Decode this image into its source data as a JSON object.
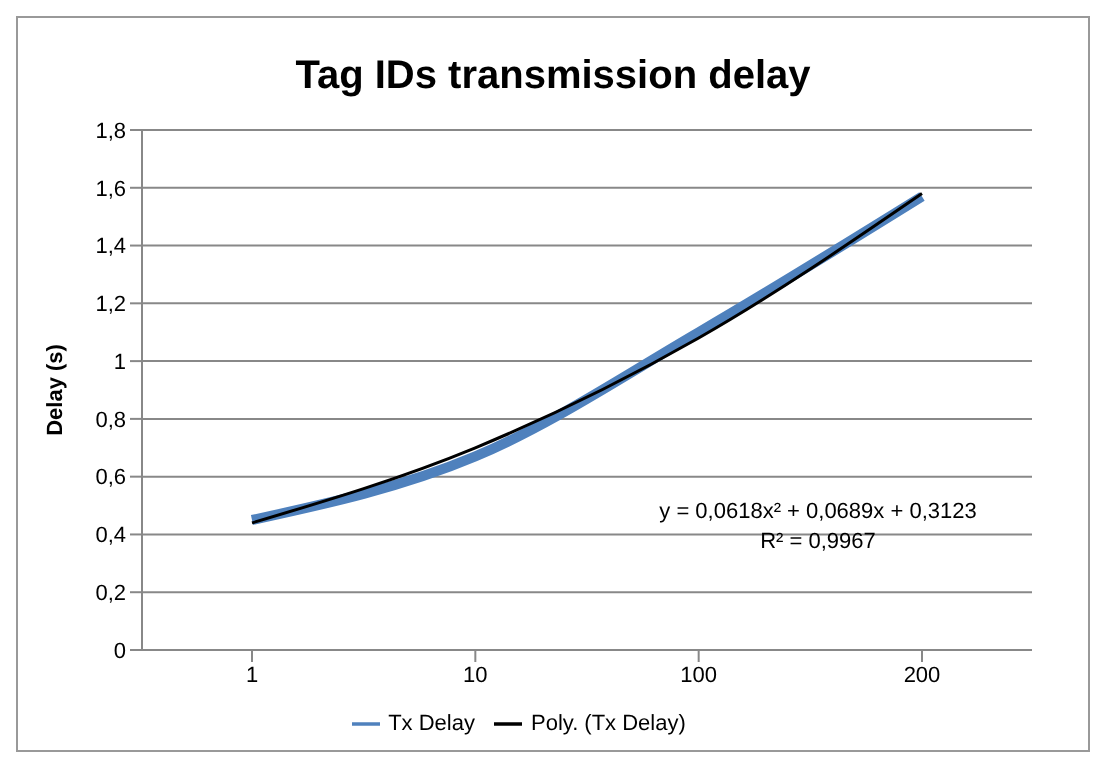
{
  "chart_data": {
    "type": "line",
    "title": "Tag IDs transmission delay",
    "ylabel": "Delay (s)",
    "categories": [
      "1",
      "10",
      "100",
      "200"
    ],
    "series": [
      {
        "name": "Tx Delay",
        "color": "#4f81bd",
        "values": [
          0.45,
          0.67,
          1.1,
          1.57
        ]
      },
      {
        "name": "Poly. (Tx Delay)",
        "color": "#000000",
        "values": [
          0.44,
          0.7,
          1.08,
          1.58
        ]
      }
    ],
    "ylim": [
      0,
      1.8
    ],
    "yticks": [
      0,
      {
        "value": 0.2,
        "label": "0,2"
      },
      {
        "value": 0.4,
        "label": "0,4"
      },
      {
        "value": 0.6,
        "label": "0,6"
      },
      {
        "value": 0.8,
        "label": "0,8"
      },
      1,
      {
        "value": 1.2,
        "label": "1,2"
      },
      {
        "value": 1.4,
        "label": "1,4"
      },
      {
        "value": 1.6,
        "label": "1,6"
      },
      {
        "value": 1.8,
        "label": "1,8"
      }
    ],
    "grid": "y",
    "legend": "bottom",
    "marker": "none",
    "line_style": "solid",
    "annotations": [
      "y = 0,0618x² + 0,0689x + 0,3123",
      "R² = 0,9967"
    ]
  }
}
